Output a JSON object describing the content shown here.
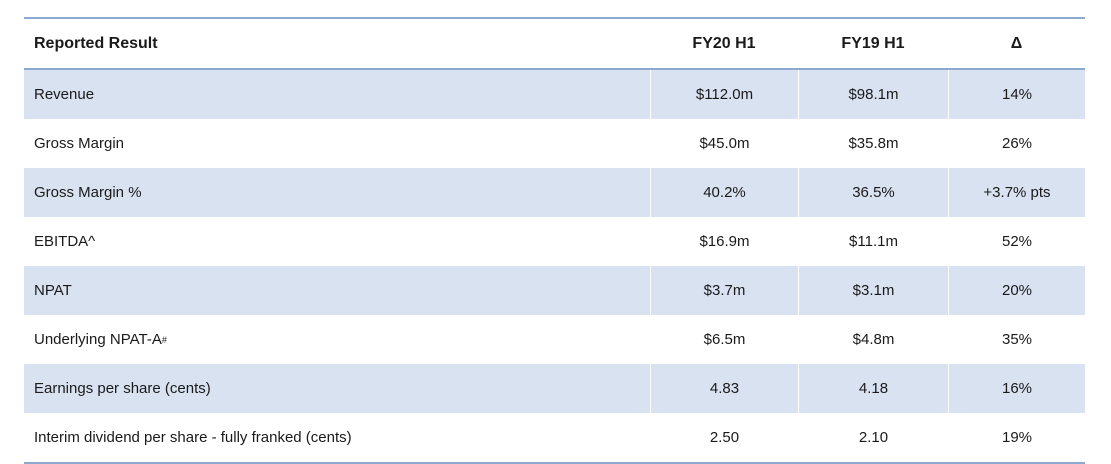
{
  "header": {
    "label": "Reported Result",
    "col1": "FY20 H1",
    "col2": "FY19 H1",
    "col3": "Δ"
  },
  "rows": [
    {
      "label": "Revenue",
      "fy20": "$112.0m",
      "fy19": "$98.1m",
      "delta": "14%"
    },
    {
      "label": "Gross Margin",
      "fy20": "$45.0m",
      "fy19": "$35.8m",
      "delta": "26%"
    },
    {
      "label": "Gross Margin %",
      "fy20": "40.2%",
      "fy19": "36.5%",
      "delta": "+3.7% pts"
    },
    {
      "label": "EBITDA^",
      "fy20": "$16.9m",
      "fy19": "$11.1m",
      "delta": "52%"
    },
    {
      "label": "NPAT",
      "fy20": "$3.7m",
      "fy19": "$3.1m",
      "delta": "20%"
    },
    {
      "label": "Underlying NPAT-A",
      "label_sup": "#",
      "fy20": "$6.5m",
      "fy19": "$4.8m",
      "delta": "35%"
    },
    {
      "label": "Earnings per share (cents)",
      "fy20": "4.83",
      "fy19": "4.18",
      "delta": "16%"
    },
    {
      "label": "Interim dividend per share - fully franked (cents)",
      "fy20": "2.50",
      "fy19": "2.10",
      "delta": "19%"
    }
  ],
  "colors": {
    "shaded_row": "#d9e2f1",
    "rule": "#8ea9cf"
  }
}
